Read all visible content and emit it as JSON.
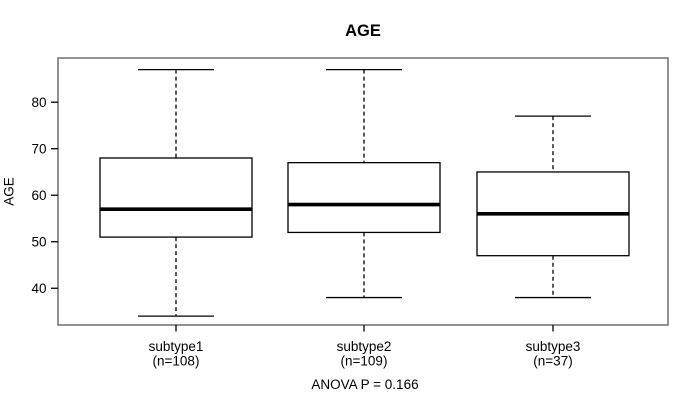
{
  "chart_data": {
    "type": "boxplot",
    "title": "AGE",
    "ylabel": "AGE",
    "annotation": "ANOVA P = 0.166",
    "anova_p": 0.166,
    "yticks": [
      40,
      50,
      60,
      70,
      80
    ],
    "ylim": [
      32.1,
      89.5
    ],
    "grid": false,
    "whisker_style": "dashed",
    "groups": [
      {
        "label": "subtype1",
        "n_label": "(n=108)",
        "n": 108,
        "min": 34,
        "q1": 51,
        "median": 57,
        "q3": 68,
        "max": 87
      },
      {
        "label": "subtype2",
        "n_label": "(n=109)",
        "n": 109,
        "min": 38,
        "q1": 52,
        "median": 58,
        "q3": 67,
        "max": 87
      },
      {
        "label": "subtype3",
        "n_label": "(n=37)",
        "n": 37,
        "min": 38,
        "q1": 47,
        "median": 56,
        "q3": 65,
        "max": 77
      }
    ]
  }
}
